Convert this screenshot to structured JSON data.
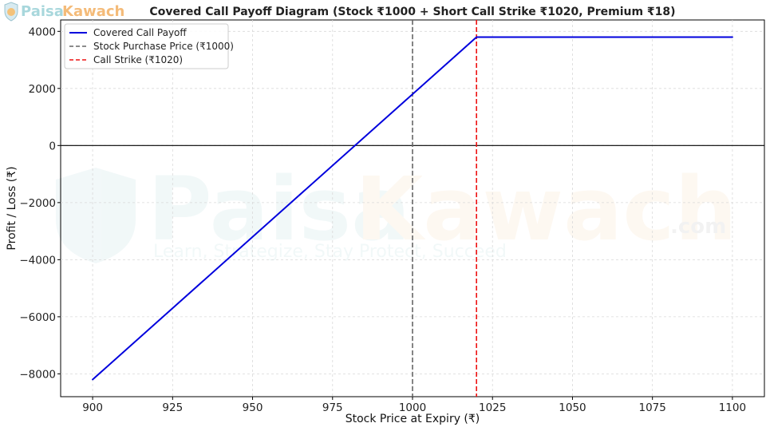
{
  "brand": {
    "name_part1": "Paisa",
    "name_part2": "Kawach",
    "domain": ".com",
    "tagline": "Learn, Strategize, Stay Protect, Succeed"
  },
  "chart_data": {
    "type": "line",
    "title": "Covered Call Payoff Diagram (Stock ₹1000 + Short Call Strike ₹1020, Premium ₹18)",
    "xlabel": "Stock Price at Expiry (₹)",
    "ylabel": "Profit / Loss (₹)",
    "xlim": [
      890,
      1110
    ],
    "ylim": [
      -8800,
      4400
    ],
    "x_ticks": [
      900,
      925,
      950,
      975,
      1000,
      1025,
      1050,
      1075,
      1100
    ],
    "y_ticks": [
      -8000,
      -6000,
      -4000,
      -2000,
      0,
      2000,
      4000
    ],
    "y_tick_labels": [
      "−8000",
      "−6000",
      "−4000",
      "−2000",
      "0",
      "2000",
      "4000"
    ],
    "grid": true,
    "legend_position": "top-left",
    "series": [
      {
        "name": "Covered Call Payoff",
        "color": "#0000dd",
        "style": "solid",
        "x": [
          900,
          1020,
          1100
        ],
        "y": [
          -8200,
          3800,
          3800
        ]
      }
    ],
    "vlines": [
      {
        "name": "Stock Purchase Price (₹1000)",
        "x": 1000,
        "color": "#666666",
        "style": "dashed"
      },
      {
        "name": "Call Strike (₹1020)",
        "x": 1020,
        "color": "#ee1111",
        "style": "dashed"
      }
    ],
    "hlines": [
      {
        "y": 0,
        "color": "#000000",
        "style": "solid"
      }
    ]
  }
}
